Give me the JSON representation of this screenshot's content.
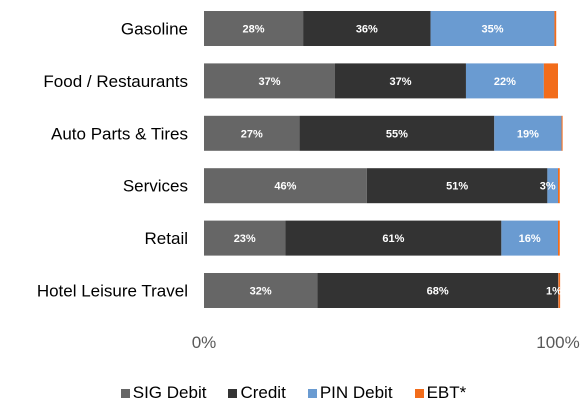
{
  "chart_data": {
    "type": "bar",
    "orientation": "horizontal",
    "stacked": true,
    "categories": [
      "Gasoline",
      "Food / Restaurants",
      "Auto Parts & Tires",
      "Services",
      "Retail",
      "Hotel Leisure Travel"
    ],
    "series": [
      {
        "name": "SIG Debit",
        "color": "#666666",
        "values": [
          28,
          37,
          27,
          46,
          23,
          32
        ],
        "labels": [
          "28%",
          "37%",
          "27%",
          "46%",
          "23%",
          "32%"
        ]
      },
      {
        "name": "Credit",
        "color": "#333333",
        "values": [
          36,
          37,
          55,
          51,
          61,
          68
        ],
        "labels": [
          "36%",
          "37%",
          "55%",
          "51%",
          "61%",
          "68%"
        ]
      },
      {
        "name": "PIN Debit",
        "color": "#6a9bd1",
        "values": [
          35,
          22,
          19,
          3,
          16,
          0.1
        ],
        "labels": [
          "35%",
          "22%",
          "19%",
          "3%",
          "16%",
          ""
        ]
      },
      {
        "name": "EBT*",
        "color": "#f26c1a",
        "values": [
          0.5,
          4,
          0.3,
          0.5,
          0.5,
          0.5
        ],
        "labels": [
          "",
          "",
          "",
          "",
          "",
          "1%"
        ]
      }
    ],
    "xlim": [
      0,
      100
    ],
    "xticks": [
      "0%",
      "100%"
    ],
    "legend_position": "bottom",
    "grid": false
  }
}
